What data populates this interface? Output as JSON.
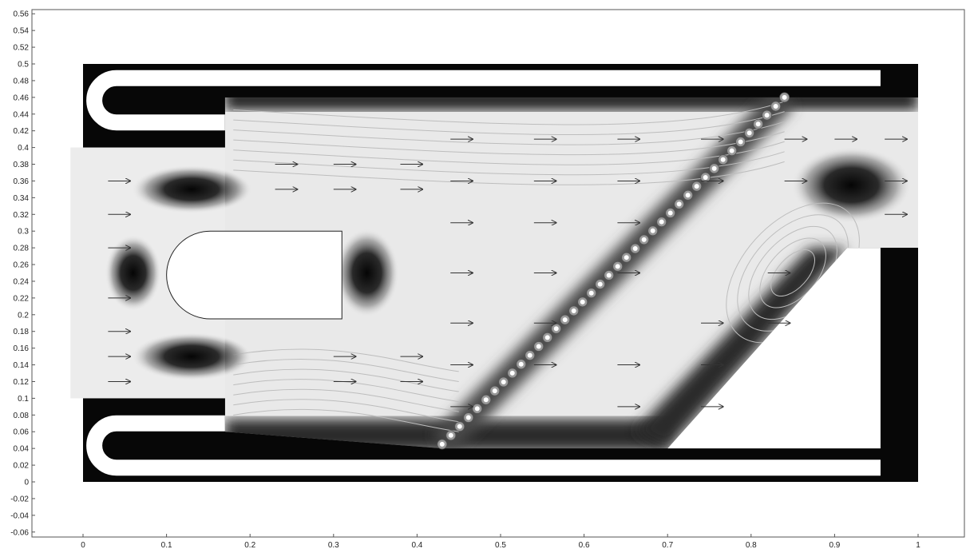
{
  "chart_data": {
    "type": "heatmap",
    "title": "",
    "xlabel": "",
    "ylabel": "",
    "xlim": [
      -0.1,
      1.06
    ],
    "ylim": [
      -0.065,
      0.56
    ],
    "x_ticks": [
      "0",
      "0.1",
      "0.2",
      "0.3",
      "0.4",
      "0.5",
      "0.6",
      "0.7",
      "0.8",
      "0.9",
      "1"
    ],
    "y_ticks": [
      "0.56",
      "0.54",
      "0.52",
      "0.5",
      "0.48",
      "0.46",
      "0.44",
      "0.42",
      "0.4",
      "0.38",
      "0.36",
      "0.34",
      "0.32",
      "0.3",
      "0.28",
      "0.26",
      "0.24",
      "0.22",
      "0.2",
      "0.18",
      "0.16",
      "0.14",
      "0.12",
      "0.1",
      "0.08",
      "0.06",
      "0.04",
      "0.02",
      "0",
      "-0.02",
      "-0.04",
      "-0.06"
    ],
    "colormap": "grayscale",
    "grid": false,
    "legend": "none",
    "domain": {
      "outer_box": [
        [
          0.0,
          0.0
        ],
        [
          1.0,
          0.5
        ]
      ],
      "inlet_channel": [
        [
          -0.015,
          0.1
        ],
        [
          0.17,
          0.4
        ]
      ],
      "central_obstacle": [
        [
          0.1,
          0.195
        ],
        [
          0.31,
          0.3
        ]
      ],
      "lower_right_wedge": [
        [
          0.7,
          0.04
        ],
        [
          0.955,
          0.04
        ],
        [
          0.955,
          0.28
        ],
        [
          0.915,
          0.28
        ]
      ],
      "outlet_y": [
        0.28,
        0.46
      ]
    },
    "dark_vortices": [
      {
        "x": 0.13,
        "y": 0.35
      },
      {
        "x": 0.13,
        "y": 0.15
      },
      {
        "x": 0.06,
        "y": 0.25
      },
      {
        "x": 0.34,
        "y": 0.25
      },
      {
        "x": 0.92,
        "y": 0.355
      }
    ],
    "bead_chain": {
      "start": [
        0.43,
        0.045
      ],
      "end": [
        0.84,
        0.46
      ],
      "count": 40
    },
    "arrows": [
      [
        0.03,
        0.36
      ],
      [
        0.03,
        0.32
      ],
      [
        0.03,
        0.28
      ],
      [
        0.03,
        0.22
      ],
      [
        0.03,
        0.18
      ],
      [
        0.03,
        0.15
      ],
      [
        0.03,
        0.12
      ],
      [
        0.23,
        0.38
      ],
      [
        0.23,
        0.35
      ],
      [
        0.3,
        0.38
      ],
      [
        0.3,
        0.35
      ],
      [
        0.3,
        0.12
      ],
      [
        0.3,
        0.15
      ],
      [
        0.38,
        0.38
      ],
      [
        0.38,
        0.35
      ],
      [
        0.38,
        0.12
      ],
      [
        0.38,
        0.15
      ],
      [
        0.44,
        0.41
      ],
      [
        0.44,
        0.36
      ],
      [
        0.44,
        0.31
      ],
      [
        0.44,
        0.25
      ],
      [
        0.44,
        0.19
      ],
      [
        0.44,
        0.14
      ],
      [
        0.44,
        0.09
      ],
      [
        0.54,
        0.41
      ],
      [
        0.54,
        0.36
      ],
      [
        0.54,
        0.31
      ],
      [
        0.54,
        0.25
      ],
      [
        0.54,
        0.19
      ],
      [
        0.54,
        0.14
      ],
      [
        0.64,
        0.41
      ],
      [
        0.64,
        0.36
      ],
      [
        0.64,
        0.31
      ],
      [
        0.64,
        0.25
      ],
      [
        0.64,
        0.09
      ],
      [
        0.64,
        0.14
      ],
      [
        0.74,
        0.41
      ],
      [
        0.74,
        0.36
      ],
      [
        0.84,
        0.41
      ],
      [
        0.84,
        0.36
      ],
      [
        0.74,
        0.19
      ],
      [
        0.74,
        0.14
      ],
      [
        0.74,
        0.09
      ],
      [
        0.82,
        0.19
      ],
      [
        0.82,
        0.25
      ],
      [
        0.9,
        0.41
      ],
      [
        0.96,
        0.41
      ],
      [
        0.96,
        0.36
      ],
      [
        0.96,
        0.32
      ]
    ]
  }
}
